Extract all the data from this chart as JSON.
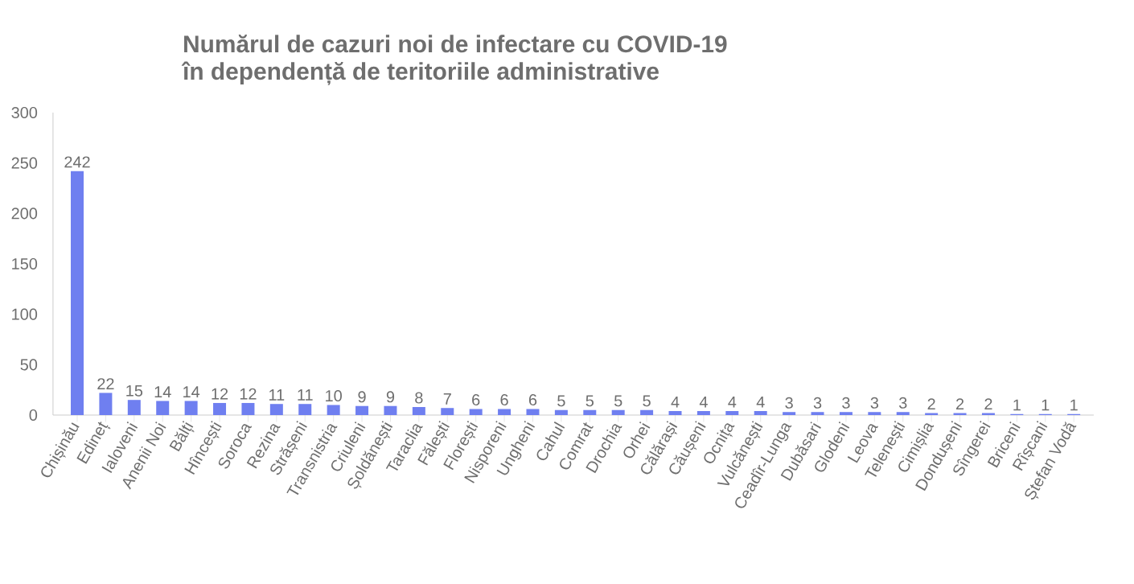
{
  "chart_data": {
    "type": "bar",
    "title": "**Numărul de cazuri noi de infectare cu COVID-19**",
    "subtitle": "**în dependență de teritoriile administrative**",
    "categories": [
      "Chișinău",
      "Edineț",
      "Ialoveni",
      "Anenii Noi",
      "Bălți",
      "Hîncești",
      "Soroca",
      "Rezina",
      "Strășeni",
      "Transnistria",
      "Criuleni",
      "Șoldănești",
      "Taraclia",
      "Fălești",
      "Florești",
      "Nisporeni",
      "Ungheni",
      "Cahul",
      "Comrat",
      "Drochia",
      "Orhei",
      "Călărași",
      "Căușeni",
      "Ocnița",
      "Vulcănești",
      "Ceadîr-Lunga",
      "Dubăsari",
      "Glodeni",
      "Leova",
      "Telenești",
      "Cimișlia",
      "Dondușeni",
      "Sîngerei",
      "Briceni",
      "Rîșcani",
      "Ștefan Vodă"
    ],
    "values": [
      242,
      22,
      15,
      14,
      14,
      12,
      12,
      11,
      11,
      10,
      9,
      9,
      8,
      7,
      6,
      6,
      6,
      5,
      5,
      5,
      5,
      4,
      4,
      4,
      4,
      3,
      3,
      3,
      3,
      3,
      2,
      2,
      2,
      1,
      1,
      1
    ],
    "color": "#6f7ff0",
    "ylim": [
      0,
      300
    ],
    "yticks": [
      0,
      50,
      100,
      150,
      200,
      250,
      300
    ],
    "data_labels": true
  }
}
